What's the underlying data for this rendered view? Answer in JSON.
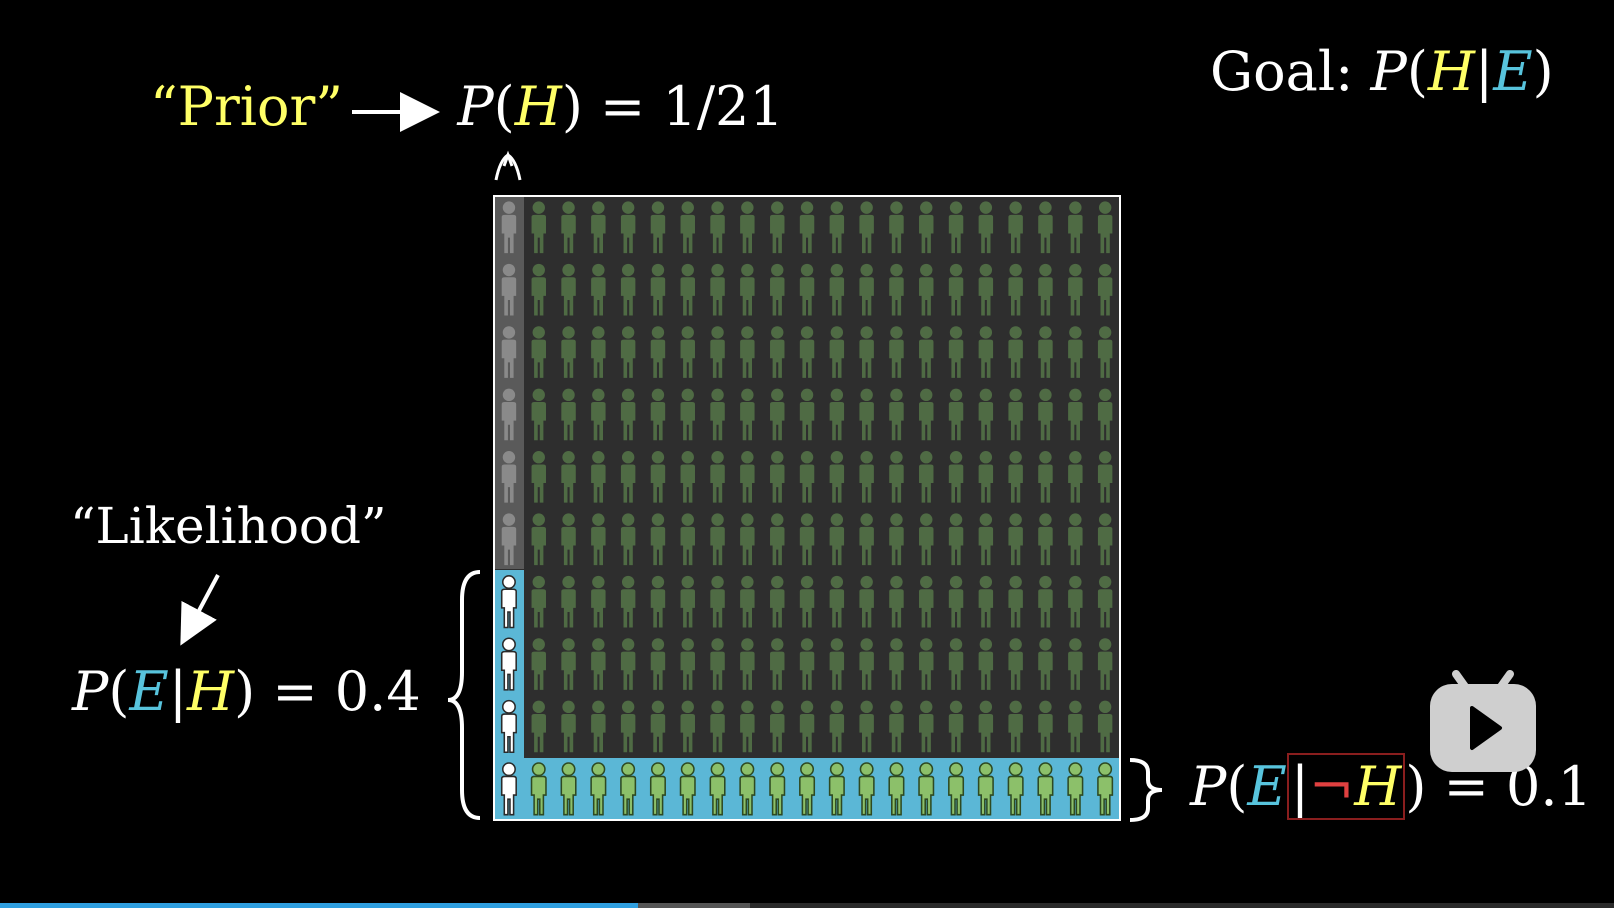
{
  "goal": {
    "label": "Goal:",
    "P": "P",
    "H": "H",
    "E": "E"
  },
  "prior": {
    "label": "“Prior”",
    "P": "P",
    "H": "H",
    "value": "1/21"
  },
  "likelihood": {
    "label": "“Likelihood”",
    "P": "P",
    "E": "E",
    "H": "H",
    "value": "0.4"
  },
  "p_e_not_h": {
    "P": "P",
    "E": "E",
    "neg": "¬",
    "H": "H",
    "value": "0.1"
  },
  "grid": {
    "columns": 21,
    "rows": 10,
    "hypothesis_columns": 1,
    "evidence_rows_hypothesis": 4,
    "evidence_rows_not_hypothesis": 1,
    "colors": {
      "person_dim_green": "#4f6b44",
      "person_green": "#8cc06a",
      "person_white": "#ffffff",
      "person_grey": "#8a8a8a",
      "highlight": "#5bb7d6",
      "border": "#ffffff"
    }
  },
  "icons": {
    "play": "play-icon"
  },
  "progress": {
    "played": 0.395,
    "buffered": 0.465
  },
  "colors": {
    "yellow": "#ffff66",
    "teal": "#58c4dd",
    "background": "#000000"
  }
}
